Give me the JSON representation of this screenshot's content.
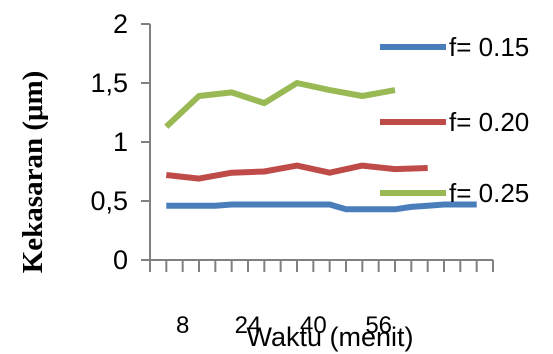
{
  "chart_data": {
    "type": "line",
    "title": "",
    "xlabel": "Waktu (menit)",
    "ylabel": "Kekasaran (μm)",
    "ylim": [
      0,
      2
    ],
    "yticks": [
      "0",
      "0,5",
      "1",
      "1,5",
      "2"
    ],
    "xtick_labels": [
      "8",
      "24",
      "40",
      "56"
    ],
    "legend_position": "right",
    "grid": false,
    "series": [
      {
        "name": "f= 0.15",
        "color": "#4a7ebb",
        "x": [
          4,
          8,
          12,
          16,
          20,
          24,
          28,
          32,
          36,
          40,
          44,
          48,
          52,
          56,
          60,
          64,
          68,
          72,
          76,
          80
        ],
        "values": [
          0.46,
          0.46,
          0.46,
          0.46,
          0.47,
          0.47,
          0.47,
          0.47,
          0.47,
          0.47,
          0.47,
          0.43,
          0.43,
          0.43,
          0.43,
          0.45,
          0.46,
          0.47,
          0.47,
          0.47
        ]
      },
      {
        "name": "f= 0.20",
        "color": "#be4b48",
        "x": [
          4,
          12,
          20,
          28,
          36,
          44,
          52,
          60,
          68
        ],
        "values": [
          0.72,
          0.69,
          0.74,
          0.75,
          0.8,
          0.74,
          0.8,
          0.77,
          0.78
        ]
      },
      {
        "name": "f= 0.25",
        "color": "#98b954",
        "x": [
          4,
          12,
          20,
          28,
          36,
          44,
          52,
          60
        ],
        "values": [
          1.13,
          1.39,
          1.42,
          1.33,
          1.5,
          1.44,
          1.39,
          1.44
        ]
      }
    ]
  }
}
